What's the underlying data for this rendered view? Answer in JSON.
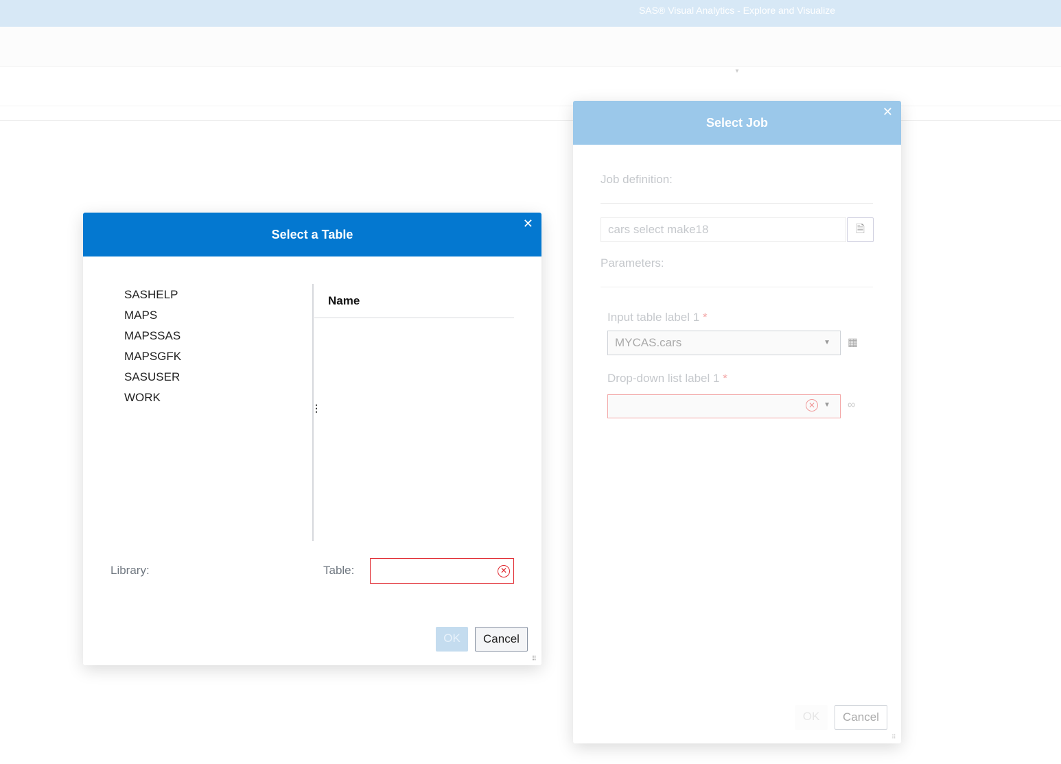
{
  "app": {
    "title": "SAS® Visual Analytics - Explore and Visualize"
  },
  "select_job": {
    "title": "Select Job",
    "job_definition_label": "Job definition:",
    "job_definition_value": "cars select make18",
    "parameters_label": "Parameters:",
    "input_table_label": "Input table label 1",
    "input_table_value": "MYCAS.cars",
    "dropdown_label": "Drop-down list label 1",
    "dropdown_value": "",
    "required_mark": "*",
    "ok_label": "OK",
    "cancel_label": "Cancel"
  },
  "select_table": {
    "title": "Select a Table",
    "libraries": [
      "SASHELP",
      "MAPS",
      "MAPSSAS",
      "MAPSGFK",
      "SASUSER",
      "WORK"
    ],
    "name_header": "Name",
    "library_label": "Library:",
    "table_label": "Table:",
    "table_value": "",
    "ok_label": "OK",
    "cancel_label": "Cancel"
  },
  "colors": {
    "accent": "#0478d0",
    "error": "#e0262d",
    "header_faded": "#9bc8ea"
  }
}
